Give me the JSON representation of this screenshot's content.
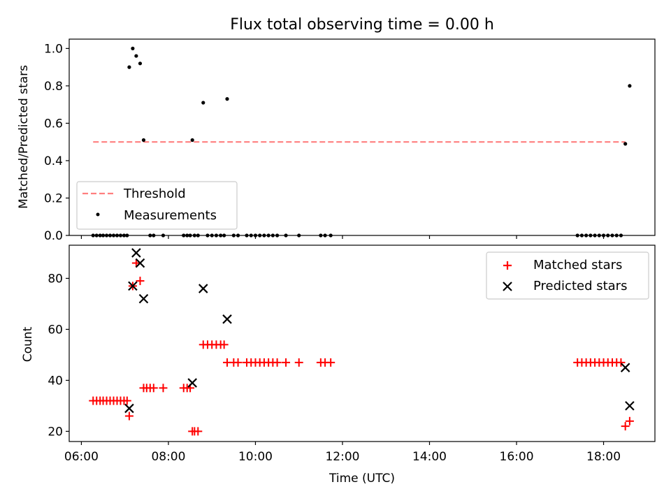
{
  "chart_data": [
    {
      "type": "scatter",
      "title": "Flux total observing time = 0.00 h",
      "ylabel": "Matched/Predicted stars",
      "ylim": [
        0.0,
        1.05
      ],
      "xlim": [
        5.72,
        19.18
      ],
      "yticks": [
        0.0,
        0.2,
        0.4,
        0.6,
        0.8,
        1.0
      ],
      "yticklabels": [
        "0.0",
        "0.2",
        "0.4",
        "0.6",
        "0.8",
        "1.0"
      ],
      "legend": {
        "position": "lower-left",
        "entries": [
          "Threshold",
          "Measurements"
        ]
      },
      "colors": {
        "threshold": "#ff7f7f",
        "measurements": "#000000"
      },
      "threshold": {
        "name": "Threshold",
        "value": 0.5,
        "x_range": [
          6.27,
          18.5
        ]
      },
      "series": [
        {
          "name": "Measurements",
          "x": [
            6.27,
            6.35,
            6.43,
            6.5,
            6.58,
            6.66,
            6.74,
            6.82,
            6.9,
            6.98,
            7.05,
            7.1,
            7.18,
            7.26,
            7.35,
            7.43,
            7.58,
            7.66,
            7.88,
            8.35,
            8.43,
            8.5,
            8.55,
            8.6,
            8.68,
            8.8,
            8.9,
            9.0,
            9.1,
            9.2,
            9.28,
            9.35,
            9.5,
            9.6,
            9.8,
            9.9,
            10.0,
            10.1,
            10.2,
            10.3,
            10.4,
            10.5,
            10.7,
            11.0,
            11.5,
            11.6,
            11.73,
            17.4,
            17.5,
            17.6,
            17.7,
            17.8,
            17.9,
            18.0,
            18.1,
            18.2,
            18.3,
            18.4,
            18.5,
            18.6
          ],
          "y": [
            0,
            0,
            0,
            0,
            0,
            0,
            0,
            0,
            0,
            0,
            0,
            0.9,
            1.0,
            0.96,
            0.92,
            0.51,
            0,
            0,
            0,
            0,
            0,
            0,
            0.51,
            0,
            0,
            0.71,
            0,
            0,
            0,
            0,
            0,
            0.73,
            0,
            0,
            0,
            0,
            0,
            0,
            0,
            0,
            0,
            0,
            0,
            0,
            0,
            0,
            0,
            0,
            0,
            0,
            0,
            0,
            0,
            0,
            0,
            0,
            0,
            0,
            0.49,
            0.8
          ]
        }
      ]
    },
    {
      "type": "scatter",
      "xlabel": "Time (UTC)",
      "ylabel": "Count",
      "ylim": [
        16,
        93
      ],
      "xlim": [
        5.72,
        19.18
      ],
      "yticks": [
        20,
        40,
        60,
        80
      ],
      "yticklabels": [
        "20",
        "40",
        "60",
        "80"
      ],
      "xticks": [
        6,
        8,
        10,
        12,
        14,
        16,
        18
      ],
      "xticklabels": [
        "06:00",
        "08:00",
        "10:00",
        "12:00",
        "14:00",
        "16:00",
        "18:00"
      ],
      "legend": {
        "position": "upper-right",
        "entries": [
          "Matched stars",
          "Predicted stars"
        ]
      },
      "colors": {
        "matched": "#ff0000",
        "predicted": "#000000"
      },
      "series": [
        {
          "name": "Matched stars",
          "x": [
            6.27,
            6.35,
            6.43,
            6.5,
            6.58,
            6.66,
            6.74,
            6.82,
            6.9,
            6.98,
            7.05,
            7.1,
            7.18,
            7.26,
            7.35,
            7.43,
            7.5,
            7.58,
            7.66,
            7.88,
            8.35,
            8.43,
            8.5,
            8.55,
            8.6,
            8.68,
            8.8,
            8.9,
            9.0,
            9.1,
            9.2,
            9.28,
            9.35,
            9.5,
            9.6,
            9.8,
            9.9,
            10.0,
            10.1,
            10.2,
            10.3,
            10.4,
            10.5,
            10.7,
            11.0,
            11.5,
            11.6,
            11.73,
            17.4,
            17.5,
            17.6,
            17.7,
            17.8,
            17.9,
            18.0,
            18.1,
            18.2,
            18.3,
            18.4,
            18.5,
            18.6
          ],
          "y": [
            32,
            32,
            32,
            32,
            32,
            32,
            32,
            32,
            32,
            32,
            32,
            26,
            77,
            86,
            79,
            37,
            37,
            37,
            37,
            37,
            37,
            37,
            37,
            20,
            20,
            20,
            54,
            54,
            54,
            54,
            54,
            54,
            47,
            47,
            47,
            47,
            47,
            47,
            47,
            47,
            47,
            47,
            47,
            47,
            47,
            47,
            47,
            47,
            47,
            47,
            47,
            47,
            47,
            47,
            47,
            47,
            47,
            47,
            47,
            22,
            24
          ]
        },
        {
          "name": "Predicted stars",
          "x": [
            7.1,
            7.18,
            7.26,
            7.35,
            7.43,
            8.55,
            8.8,
            9.35,
            18.5,
            18.6
          ],
          "y": [
            29,
            77,
            90,
            86,
            72,
            39,
            76,
            64,
            45,
            30
          ]
        }
      ]
    }
  ]
}
